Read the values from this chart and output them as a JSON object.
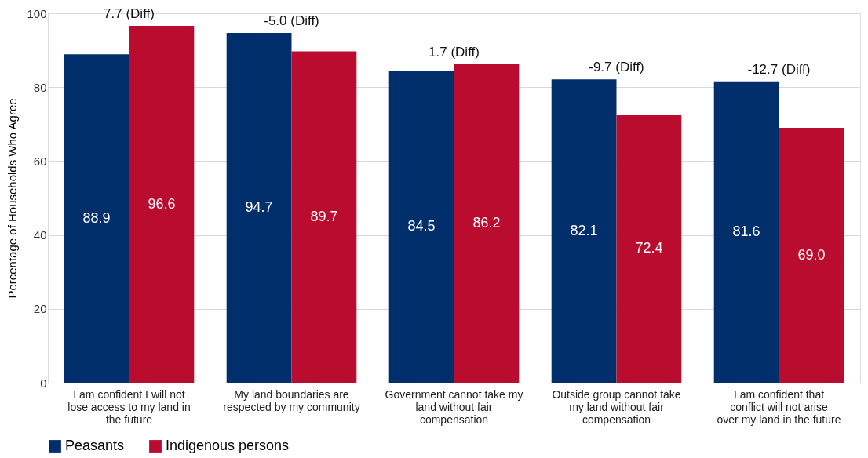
{
  "chart_data": {
    "type": "bar",
    "ylabel": "Percentage of Households Who Agree",
    "categories": [
      "I am confident I will not lose access to my land in the future",
      "My land boundaries are respected by my community",
      "Government cannot take my land without fair compensation",
      "Outside group cannot take my land without fair compensation",
      "I am confident that conflict will not arise over my land in the future"
    ],
    "series": [
      {
        "name": "Peasants",
        "color": "#002f6c",
        "values": [
          88.9,
          94.7,
          84.5,
          82.1,
          81.6
        ],
        "value_labels": [
          "88.9",
          "94.7",
          "84.5",
          "82.1",
          "81.6"
        ]
      },
      {
        "name": "Indigenous persons",
        "color": "#ba0c2f",
        "values": [
          96.6,
          89.7,
          86.2,
          72.4,
          69.0
        ],
        "value_labels": [
          "96.6",
          "89.7",
          "86.2",
          "72.4",
          "69.0"
        ]
      }
    ],
    "ylim": [
      0,
      100
    ],
    "yticks": [
      0,
      20,
      40,
      60,
      80,
      100
    ],
    "grid": "y",
    "legend": "bottom",
    "annotations": [
      {
        "text": "7.7 (Diff)",
        "x": "I am confident I will not lose access to my land in the future",
        "y": 96.6
      },
      {
        "text": "-5.0 (Diff)",
        "x": "My land boundaries are respected by my community",
        "y": 94.7
      },
      {
        "text": "1.7 (Diff)",
        "x": "Government cannot take my land without fair compensation",
        "y": 86.2
      },
      {
        "text": "-9.7 (Diff)",
        "x": "Outside group cannot take my land without fair compensation",
        "y": 82.1
      },
      {
        "text": "-12.7 (Diff)",
        "x": "I am confident that conflict will not arise over my land in the future",
        "y": 81.6
      }
    ]
  }
}
